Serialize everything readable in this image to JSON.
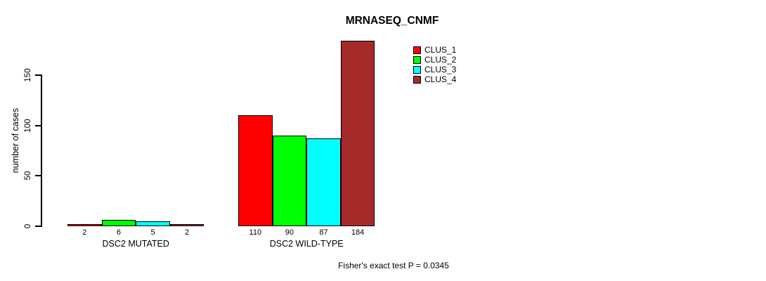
{
  "title": "MRNASEQ_CNMF",
  "ylabel": "number of cases",
  "footer": "Fisher's exact test P = 0.0345",
  "chart_data": {
    "type": "bar",
    "title": "MRNASEQ_CNMF",
    "xlabel": "",
    "ylabel": "number of cases",
    "categories": [
      "DSC2 MUTATED",
      "DSC2 WILD-TYPE"
    ],
    "series": [
      {
        "name": "CLUS_1",
        "color": "#FF0000",
        "values": [
          2,
          110
        ]
      },
      {
        "name": "CLUS_2",
        "color": "#00FF00",
        "values": [
          6,
          90
        ]
      },
      {
        "name": "CLUS_3",
        "color": "#00FFFF",
        "values": [
          5,
          87
        ]
      },
      {
        "name": "CLUS_4",
        "color": "#A52A2A",
        "values": [
          2,
          184
        ]
      }
    ],
    "bar_value_labels": [
      [
        "2",
        "6",
        "5",
        "2"
      ],
      [
        "110",
        "90",
        "87",
        "184"
      ]
    ],
    "yticks": [
      0,
      50,
      100,
      150
    ],
    "ylim": [
      0,
      184
    ],
    "grid": false,
    "legend_position": "top-right",
    "annotation": "Fisher's exact test P = 0.0345"
  }
}
